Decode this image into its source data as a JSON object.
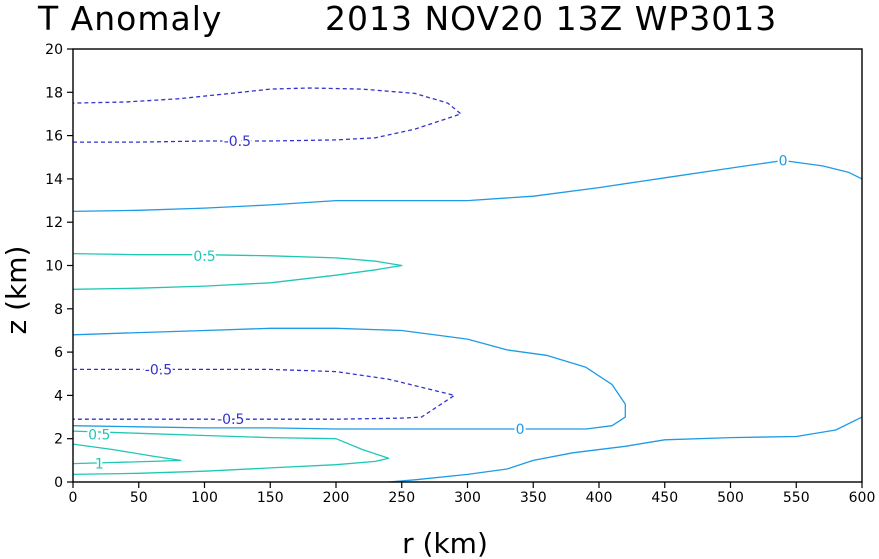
{
  "chart_data": {
    "type": "contour",
    "title_left": "T Anomaly",
    "title_right": "2013 NOV20 13Z   WP3013",
    "xlabel": "r (km)",
    "ylabel": "z (km)",
    "xlim": [
      0,
      600
    ],
    "ylim": [
      0,
      20
    ],
    "xticks": [
      0,
      50,
      100,
      150,
      200,
      250,
      300,
      350,
      400,
      450,
      500,
      550,
      600
    ],
    "yticks": [
      0,
      2,
      4,
      6,
      8,
      10,
      12,
      14,
      16,
      18,
      20
    ],
    "colors": {
      "neg": "#3333cc",
      "zero": "#1e9be6",
      "pos": "#1fc8b4",
      "axes": "#000000"
    },
    "contours": [
      {
        "level": "-0.5",
        "style": "dashed",
        "color": "neg",
        "points": [
          [
            0,
            15.7
          ],
          [
            50,
            15.7
          ],
          [
            100,
            15.75
          ],
          [
            150,
            15.75
          ],
          [
            200,
            15.8
          ],
          [
            230,
            15.9
          ],
          [
            260,
            16.3
          ],
          [
            285,
            16.8
          ],
          [
            295,
            17.0
          ],
          [
            285,
            17.5
          ],
          [
            260,
            17.95
          ],
          [
            220,
            18.15
          ],
          [
            180,
            18.2
          ],
          [
            150,
            18.15
          ],
          [
            120,
            17.95
          ],
          [
            80,
            17.7
          ],
          [
            40,
            17.55
          ],
          [
            0,
            17.5
          ]
        ],
        "label": {
          "text": "-0.5",
          "x": 125,
          "y": 15.75
        }
      },
      {
        "level": "0",
        "style": "solid",
        "color": "zero",
        "points": [
          [
            0,
            12.5
          ],
          [
            50,
            12.55
          ],
          [
            100,
            12.65
          ],
          [
            150,
            12.8
          ],
          [
            200,
            13.0
          ],
          [
            250,
            13.0
          ],
          [
            300,
            13.0
          ],
          [
            350,
            13.2
          ],
          [
            400,
            13.6
          ],
          [
            450,
            14.05
          ],
          [
            500,
            14.5
          ],
          [
            540,
            14.85
          ],
          [
            570,
            14.6
          ],
          [
            590,
            14.3
          ],
          [
            600,
            14.0
          ]
        ],
        "label": {
          "text": "0",
          "x": 540,
          "y": 14.85
        }
      },
      {
        "level": "0.5",
        "style": "solid",
        "color": "pos",
        "points": [
          [
            0,
            10.55
          ],
          [
            50,
            10.5
          ],
          [
            100,
            10.5
          ],
          [
            150,
            10.45
          ],
          [
            200,
            10.35
          ],
          [
            230,
            10.2
          ],
          [
            250,
            10.0
          ],
          [
            230,
            9.8
          ],
          [
            200,
            9.55
          ],
          [
            150,
            9.2
          ],
          [
            100,
            9.05
          ],
          [
            50,
            8.95
          ],
          [
            0,
            8.9
          ]
        ],
        "label": {
          "text": "0.5",
          "x": 100,
          "y": 10.45
        }
      },
      {
        "level": "0",
        "style": "solid",
        "color": "zero",
        "points": [
          [
            0,
            6.8
          ],
          [
            50,
            6.9
          ],
          [
            100,
            7.0
          ],
          [
            150,
            7.1
          ],
          [
            200,
            7.1
          ],
          [
            250,
            7.0
          ],
          [
            300,
            6.6
          ],
          [
            330,
            6.1
          ],
          [
            360,
            5.85
          ],
          [
            390,
            5.3
          ],
          [
            410,
            4.5
          ],
          [
            420,
            3.6
          ],
          [
            420,
            3.0
          ],
          [
            410,
            2.6
          ],
          [
            390,
            2.45
          ],
          [
            350,
            2.45
          ],
          [
            300,
            2.45
          ],
          [
            250,
            2.45
          ],
          [
            200,
            2.45
          ],
          [
            150,
            2.5
          ],
          [
            100,
            2.5
          ],
          [
            50,
            2.55
          ],
          [
            0,
            2.6
          ]
        ],
        "label": {
          "text": "0",
          "x": 340,
          "y": 2.45
        }
      },
      {
        "level": "-0.5",
        "style": "dashed",
        "color": "neg",
        "points": [
          [
            0,
            5.2
          ],
          [
            50,
            5.2
          ],
          [
            100,
            5.2
          ],
          [
            150,
            5.2
          ],
          [
            200,
            5.1
          ],
          [
            240,
            4.75
          ],
          [
            270,
            4.3
          ],
          [
            290,
            4.0
          ],
          [
            280,
            3.6
          ],
          [
            265,
            3.0
          ],
          [
            250,
            2.95
          ],
          [
            200,
            2.9
          ],
          [
            150,
            2.9
          ],
          [
            100,
            2.9
          ],
          [
            50,
            2.9
          ],
          [
            0,
            2.9
          ]
        ],
        "label": {
          "text": "-0.5",
          "x": 65,
          "y": 5.2
        }
      },
      {
        "level": "-0.5",
        "style": "dashed",
        "color": "neg",
        "label": {
          "text": "-0.5",
          "x": 120,
          "y": 2.9
        }
      },
      {
        "level": "0.5",
        "style": "solid",
        "color": "pos",
        "points": [
          [
            0,
            2.35
          ],
          [
            50,
            2.25
          ],
          [
            100,
            2.15
          ],
          [
            150,
            2.05
          ],
          [
            200,
            2.0
          ],
          [
            220,
            1.5
          ],
          [
            240,
            1.1
          ],
          [
            230,
            0.95
          ],
          [
            200,
            0.8
          ],
          [
            150,
            0.65
          ],
          [
            100,
            0.5
          ],
          [
            50,
            0.4
          ],
          [
            0,
            0.35
          ]
        ],
        "label": {
          "text": "0.5",
          "x": 20,
          "y": 2.2
        }
      },
      {
        "level": "1",
        "style": "solid",
        "color": "pos",
        "points": [
          [
            0,
            1.75
          ],
          [
            30,
            1.5
          ],
          [
            60,
            1.2
          ],
          [
            82,
            1.0
          ],
          [
            60,
            0.95
          ],
          [
            30,
            0.9
          ],
          [
            0,
            0.85
          ]
        ],
        "label": {
          "text": "1",
          "x": 20,
          "y": 0.85
        }
      },
      {
        "level": "0",
        "style": "solid",
        "color": "zero",
        "points": [
          [
            240,
            0
          ],
          [
            260,
            0.1
          ],
          [
            300,
            0.35
          ],
          [
            330,
            0.6
          ],
          [
            350,
            1.0
          ],
          [
            380,
            1.35
          ],
          [
            420,
            1.65
          ],
          [
            450,
            1.95
          ],
          [
            500,
            2.05
          ],
          [
            550,
            2.1
          ],
          [
            580,
            2.4
          ],
          [
            600,
            3.0
          ]
        ]
      }
    ]
  }
}
